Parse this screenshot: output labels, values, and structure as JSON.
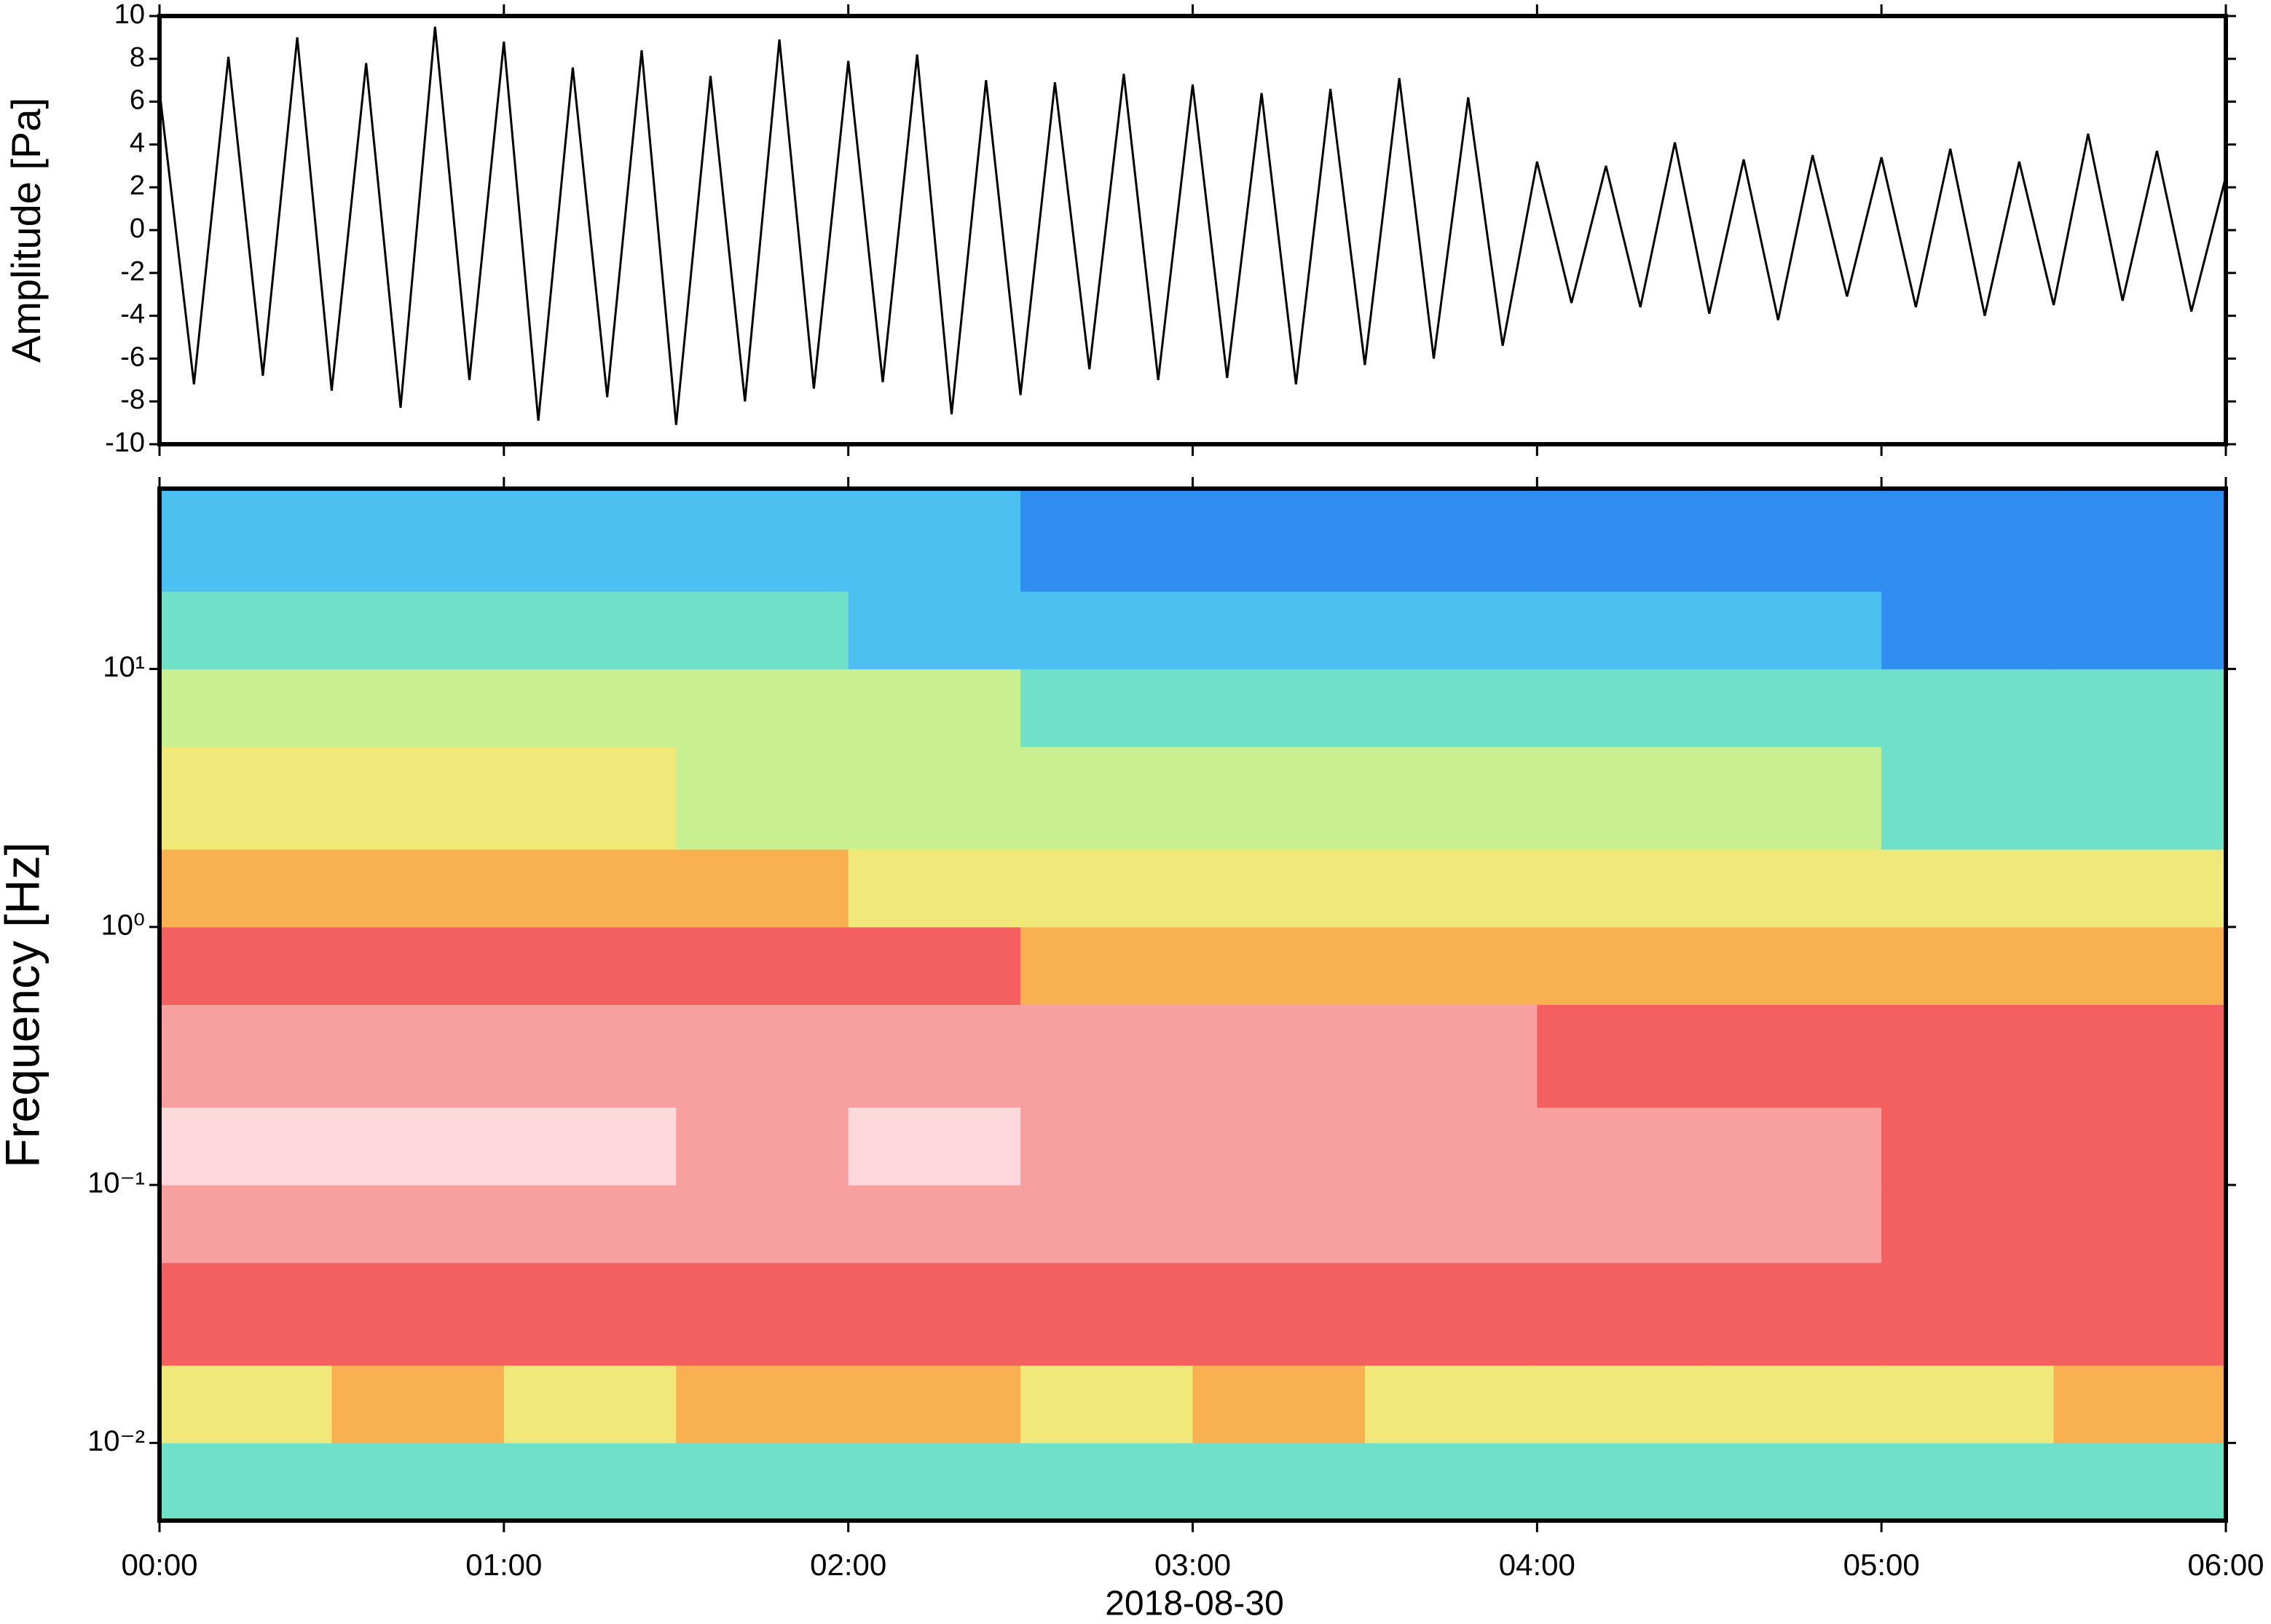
{
  "chart_data": [
    {
      "type": "line",
      "ylabel": "Amplitude [Pa]",
      "color": "#000000",
      "xlim": [
        0,
        6
      ],
      "ylim": [
        -10,
        10
      ],
      "yticks": [
        -10,
        -8,
        -6,
        -4,
        -2,
        0,
        2,
        4,
        6,
        8,
        10
      ],
      "x": [
        0,
        0.1,
        0.2,
        0.3,
        0.4,
        0.5,
        0.6,
        0.7,
        0.8,
        0.9,
        1,
        1.1,
        1.2,
        1.3,
        1.4,
        1.5,
        1.6,
        1.7,
        1.8,
        1.9,
        2,
        2.1,
        2.2,
        2.3,
        2.4,
        2.5,
        2.6,
        2.7,
        2.8,
        2.9,
        3,
        3.1,
        3.2,
        3.3,
        3.4,
        3.5,
        3.6,
        3.7,
        3.8,
        3.9,
        4,
        4.1,
        4.2,
        4.3,
        4.4,
        4.5,
        4.6,
        4.7,
        4.8,
        4.9,
        5,
        5.1,
        5.2,
        5.3,
        5.4,
        5.5,
        5.6,
        5.7,
        5.8,
        5.9,
        6
      ],
      "values": [
        6.5,
        -7.2,
        8.1,
        -6.8,
        9.0,
        -7.5,
        7.8,
        -8.3,
        9.5,
        -7.0,
        8.8,
        -8.9,
        7.6,
        -7.8,
        8.4,
        -9.1,
        7.2,
        -8.0,
        8.9,
        -7.4,
        7.9,
        -7.1,
        8.2,
        -8.6,
        7.0,
        -7.7,
        6.9,
        -6.5,
        7.3,
        -7.0,
        6.8,
        -6.9,
        6.4,
        -7.2,
        6.6,
        -6.3,
        7.1,
        -6.0,
        6.2,
        -5.4,
        3.2,
        -3.4,
        3.0,
        -3.6,
        4.1,
        -3.9,
        3.3,
        -4.2,
        3.5,
        -3.1,
        3.4,
        -3.6,
        3.8,
        -4.0,
        3.2,
        -3.5,
        4.5,
        -3.3,
        3.7,
        -3.8,
        2.5
      ]
    },
    {
      "type": "heatmap",
      "ylabel": "Frequency [Hz]",
      "xlabel": "2018-08-30",
      "log_y": true,
      "xlim": [
        0,
        6
      ],
      "ylim": [
        0.005,
        50
      ],
      "xticks": [
        {
          "value": 0,
          "label": "00:00"
        },
        {
          "value": 1,
          "label": "01:00"
        },
        {
          "value": 2,
          "label": "02:00"
        },
        {
          "value": 3,
          "label": "03:00"
        },
        {
          "value": 4,
          "label": "04:00"
        },
        {
          "value": 5,
          "label": "05:00"
        },
        {
          "value": 6,
          "label": "06:00"
        }
      ],
      "yticks": [
        {
          "value": 0.01,
          "label": "10⁻²"
        },
        {
          "value": 0.1,
          "label": "10⁻¹"
        },
        {
          "value": 1,
          "label": "10⁰"
        },
        {
          "value": 10,
          "label": "10¹"
        }
      ],
      "x_edges": [
        0,
        0.5,
        1,
        1.5,
        2,
        2.5,
        3,
        3.5,
        4,
        4.5,
        5,
        5.5,
        6
      ],
      "y_edges": [
        0.005,
        0.01,
        0.02,
        0.05,
        0.1,
        0.2,
        0.5,
        1,
        2,
        5,
        10,
        20,
        50
      ],
      "zlim": [
        0,
        10
      ],
      "colors": [
        "#0a1a8c",
        "#1d4fd6",
        "#2f8ef0",
        "#4cc0f0",
        "#70e0c8",
        "#c8f090",
        "#f0e878",
        "#f8b050",
        "#f46060",
        "#f8a0a0",
        "#fcd8dc"
      ],
      "z": [
        [
          4,
          4.2,
          3.8,
          4,
          4.1,
          3.9,
          4,
          3.7,
          3.8,
          3.6,
          3.7,
          3.8
        ],
        [
          6.4,
          6.6,
          6.3,
          6.5,
          6.6,
          6.4,
          6.5,
          6.3,
          6.2,
          6.4,
          6.3,
          6.5
        ],
        [
          8,
          8.1,
          8,
          7.9,
          8.1,
          8,
          7.9,
          8,
          8,
          7.9,
          8.1,
          8
        ],
        [
          9,
          9.1,
          9.2,
          9,
          9.1,
          9,
          8.9,
          9,
          8.6,
          8.5,
          8.4,
          8.3
        ],
        [
          9.5,
          9.6,
          9.5,
          9.4,
          9.5,
          9.4,
          9.3,
          9.2,
          8.6,
          8.5,
          8.4,
          8.4
        ],
        [
          8.9,
          9,
          8.9,
          8.8,
          8.8,
          8.7,
          8.6,
          8.5,
          8,
          7.9,
          7.8,
          7.8
        ],
        [
          7.8,
          7.7,
          7.6,
          7.5,
          7.5,
          7.4,
          7.3,
          7.3,
          7,
          6.8,
          6.6,
          6.6
        ],
        [
          6.8,
          6.7,
          6.6,
          6.5,
          6.4,
          6.3,
          6.2,
          6.1,
          5.8,
          5.6,
          5.5,
          5.5
        ],
        [
          5.6,
          5.5,
          5.5,
          5.4,
          5.3,
          5.2,
          5.1,
          5,
          4.7,
          4.5,
          4.4,
          4.4
        ],
        [
          4.8,
          4.7,
          4.7,
          4.6,
          4.5,
          4.4,
          4.3,
          4.2,
          3.8,
          3.6,
          3.5,
          3.5
        ],
        [
          3.8,
          3.7,
          3.6,
          3.5,
          3.4,
          3.3,
          3.2,
          3.1,
          2.7,
          2.5,
          2.3,
          2.3
        ],
        [
          2.8,
          2.7,
          2.6,
          2.5,
          2.5,
          2.4,
          2.3,
          2.2,
          2,
          1.8,
          1.6,
          1.6
        ]
      ]
    }
  ]
}
